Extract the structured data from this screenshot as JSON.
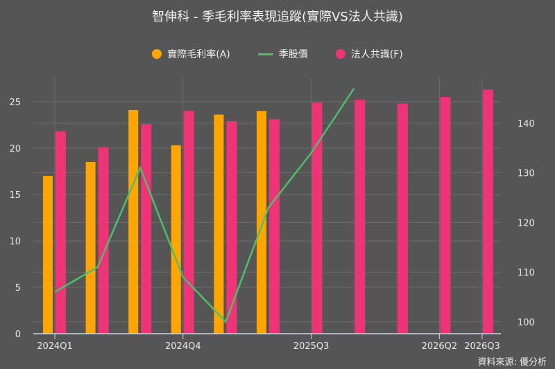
{
  "chart_data": {
    "type": "bar",
    "title": "智伸科 - 季毛利率表現追蹤(實際VS法人共識)",
    "categories": [
      "2024Q1",
      "2024Q2",
      "2024Q3",
      "2024Q4",
      "2025Q1",
      "2025Q2",
      "2025Q3",
      "2025Q4",
      "2026Q1",
      "2026Q2",
      "2026Q3"
    ],
    "shown_tick_labels": [
      "2024Q1",
      "2024Q4",
      "2025Q3",
      "2026Q2",
      "2026Q3"
    ],
    "series": [
      {
        "name": "實際毛利率(A)",
        "type": "bar",
        "axis": "left",
        "color": "#FFA500",
        "values": [
          17.0,
          18.5,
          24.1,
          20.3,
          23.6,
          24.0,
          null,
          null,
          null,
          null,
          null
        ]
      },
      {
        "name": "季股價",
        "type": "line",
        "axis": "right",
        "color": "#4CBF6B",
        "values": [
          106,
          111,
          131,
          109,
          100,
          123,
          134,
          147,
          null,
          null,
          null
        ]
      },
      {
        "name": "法人共識(F)",
        "type": "bar",
        "axis": "left",
        "color": "#EE3377",
        "values": [
          21.8,
          20.1,
          22.6,
          24.0,
          22.9,
          23.1,
          24.9,
          25.2,
          24.8,
          25.5,
          26.3
        ]
      }
    ],
    "left_axis": {
      "ylim": [
        0,
        27.6
      ],
      "ticks": [
        0,
        5,
        10,
        15,
        20,
        25
      ]
    },
    "right_axis": {
      "ylim": [
        97.6,
        149.2
      ],
      "ticks": [
        100,
        110,
        120,
        130,
        140
      ]
    },
    "grid": true,
    "legend_position": "top-center",
    "xlabel": "",
    "ylabel": ""
  },
  "source": "資料來源: 優分析"
}
